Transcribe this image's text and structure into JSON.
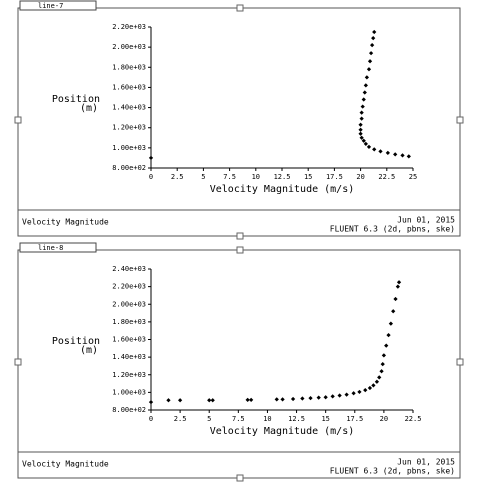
{
  "chart_data": [
    {
      "type": "scatter",
      "window_title": "line-7",
      "xlabel": "Velocity Magnitude (m/s)",
      "ylabel": "Position",
      "ylabel_units": "(m)",
      "footer_left": "Velocity Magnitude",
      "footer_date": "Jun 01, 2015",
      "footer_version": "FLUENT 6.3 (2d, pbns, ske)",
      "color": "#000000",
      "xlim": [
        0,
        25
      ],
      "ylim": [
        800,
        2200
      ],
      "xticks": [
        0,
        2.5,
        5,
        7.5,
        10,
        12.5,
        15,
        17.5,
        20,
        22.5,
        25
      ],
      "yticks": [
        {
          "value": 800,
          "label": "8.00e+02"
        },
        {
          "value": 1000,
          "label": "1.00e+03"
        },
        {
          "value": 1200,
          "label": "1.20e+03"
        },
        {
          "value": 1400,
          "label": "1.40e+03"
        },
        {
          "value": 1600,
          "label": "1.60e+03"
        },
        {
          "value": 1800,
          "label": "1.80e+03"
        },
        {
          "value": 2000,
          "label": "2.00e+03"
        },
        {
          "value": 2200,
          "label": "2.20e+03"
        }
      ],
      "x": [
        0,
        24.6,
        24.0,
        23.3,
        22.6,
        21.9,
        21.3,
        20.8,
        20.5,
        20.3,
        20.1,
        20.0,
        20.0,
        20.0,
        20.1,
        20.1,
        20.2,
        20.3,
        20.4,
        20.5,
        20.6,
        20.8,
        20.9,
        21.0,
        21.1,
        21.2,
        21.3
      ],
      "values": [
        900,
        915,
        925,
        935,
        950,
        965,
        985,
        1010,
        1040,
        1070,
        1100,
        1140,
        1180,
        1230,
        1290,
        1350,
        1410,
        1480,
        1550,
        1620,
        1700,
        1780,
        1860,
        1940,
        2020,
        2090,
        2150
      ]
    },
    {
      "type": "scatter",
      "window_title": "line-8",
      "xlabel": "Velocity Magnitude (m/s)",
      "ylabel": "Position",
      "ylabel_units": "(m)",
      "footer_left": "Velocity Magnitude",
      "footer_date": "Jun 01, 2015",
      "footer_version": "FLUENT 6.3 (2d, pbns, ske)",
      "color": "#000000",
      "xlim": [
        0,
        22.5
      ],
      "ylim": [
        800,
        2400
      ],
      "xticks": [
        0,
        2.5,
        5,
        7.5,
        10,
        12.5,
        15,
        17.5,
        20,
        22.5
      ],
      "yticks": [
        {
          "value": 800,
          "label": "8.00e+02"
        },
        {
          "value": 1000,
          "label": "1.00e+03"
        },
        {
          "value": 1200,
          "label": "1.20e+03"
        },
        {
          "value": 1400,
          "label": "1.40e+03"
        },
        {
          "value": 1600,
          "label": "1.60e+03"
        },
        {
          "value": 1800,
          "label": "1.80e+03"
        },
        {
          "value": 2000,
          "label": "2.00e+03"
        },
        {
          "value": 2200,
          "label": "2.20e+03"
        },
        {
          "value": 2400,
          "label": "2.40e+03"
        }
      ],
      "x": [
        0,
        1.5,
        2.5,
        5,
        5.3,
        8.3,
        8.6,
        10.8,
        11.3,
        12.2,
        13,
        13.7,
        14.4,
        15,
        15.6,
        16.2,
        16.8,
        17.4,
        17.9,
        18.4,
        18.8,
        19.1,
        19.4,
        19.6,
        19.8,
        19.9,
        20.0,
        20.2,
        20.4,
        20.6,
        20.8,
        21.0,
        21.2,
        21.3
      ],
      "values": [
        890,
        910,
        910,
        910,
        910,
        915,
        915,
        920,
        920,
        925,
        930,
        935,
        940,
        945,
        955,
        965,
        975,
        990,
        1005,
        1025,
        1050,
        1080,
        1120,
        1170,
        1240,
        1320,
        1420,
        1530,
        1650,
        1780,
        1920,
        2060,
        2200,
        2250
      ]
    }
  ]
}
